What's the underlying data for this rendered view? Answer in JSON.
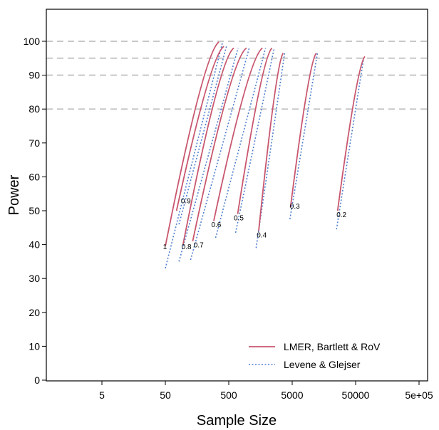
{
  "chart_data": {
    "type": "line",
    "xlabel": "Sample Size",
    "ylabel": "Power",
    "x_scale": "log10",
    "xlim": [
      0.5,
      500000
    ],
    "ylim": [
      0,
      100
    ],
    "x_ticks": [
      {
        "value": 5,
        "label": "5"
      },
      {
        "value": 50,
        "label": "50"
      },
      {
        "value": 500,
        "label": "500"
      },
      {
        "value": 5000,
        "label": "5000"
      },
      {
        "value": 50000,
        "label": "50000"
      },
      {
        "value": 500000,
        "label": "5e+05"
      }
    ],
    "y_ticks": [
      0,
      10,
      20,
      30,
      40,
      50,
      60,
      70,
      80,
      90,
      100
    ],
    "reference_lines": [
      80,
      90,
      95,
      100
    ],
    "grid": false,
    "legend_position": "bottom-right",
    "legend": [
      {
        "label": "LMER, Bartlett & RoV",
        "color": "#c8566e",
        "style": "solid"
      },
      {
        "label": "Levene & Glejser",
        "color": "#4f7fd0",
        "style": "dotted"
      }
    ],
    "curves": [
      {
        "label": "1",
        "label_pos": [
          46,
          39.5
        ],
        "solid": [
          [
            50,
            39.5
          ],
          [
            350,
            99.8
          ]
        ],
        "dotted": [
          [
            50,
            33
          ],
          [
            400,
            99.8
          ]
        ]
      },
      {
        "label": "0.9",
        "label_pos": [
          88,
          53
        ],
        "solid": [
          [
            75,
            50
          ],
          [
            420,
            98.5
          ]
        ],
        "dotted": [
          [
            82,
            46
          ],
          [
            460,
            98.5
          ]
        ]
      },
      {
        "label": "0.8",
        "label_pos": [
          90,
          39.5
        ],
        "solid": [
          [
            95,
            40
          ],
          [
            600,
            98
          ]
        ],
        "dotted": [
          [
            82,
            35
          ],
          [
            700,
            98
          ]
        ]
      },
      {
        "label": "0.7",
        "label_pos": [
          140,
          40
        ],
        "solid": [
          [
            135,
            41
          ],
          [
            950,
            98
          ]
        ],
        "dotted": [
          [
            125,
            35.5
          ],
          [
            1050,
            98
          ]
        ]
      },
      {
        "label": "0.6",
        "label_pos": [
          265,
          46
        ],
        "solid": [
          [
            290,
            47
          ],
          [
            1700,
            98
          ]
        ],
        "dotted": [
          [
            310,
            42
          ],
          [
            1900,
            98
          ]
        ]
      },
      {
        "label": "0.5",
        "label_pos": [
          600,
          48
        ],
        "solid": [
          [
            690,
            49
          ],
          [
            2400,
            98
          ]
        ],
        "dotted": [
          [
            640,
            43.5
          ],
          [
            2600,
            98
          ]
        ]
      },
      {
        "label": "0.4",
        "label_pos": [
          1380,
          43
        ],
        "solid": [
          [
            1480,
            44
          ],
          [
            3600,
            96.5
          ]
        ],
        "dotted": [
          [
            1350,
            39
          ],
          [
            3800,
            96.5
          ]
        ]
      },
      {
        "label": "0.3",
        "label_pos": [
          4600,
          51.5
        ],
        "solid": [
          [
            4700,
            51
          ],
          [
            12000,
            96.5
          ]
        ],
        "dotted": [
          [
            4600,
            47.5
          ],
          [
            12500,
            96.5
          ]
        ]
      },
      {
        "label": "0.2",
        "label_pos": [
          25000,
          49
        ],
        "solid": [
          [
            26000,
            50
          ],
          [
            70000,
            95.5
          ]
        ],
        "dotted": [
          [
            25000,
            44.5
          ],
          [
            67000,
            95
          ]
        ]
      }
    ]
  }
}
